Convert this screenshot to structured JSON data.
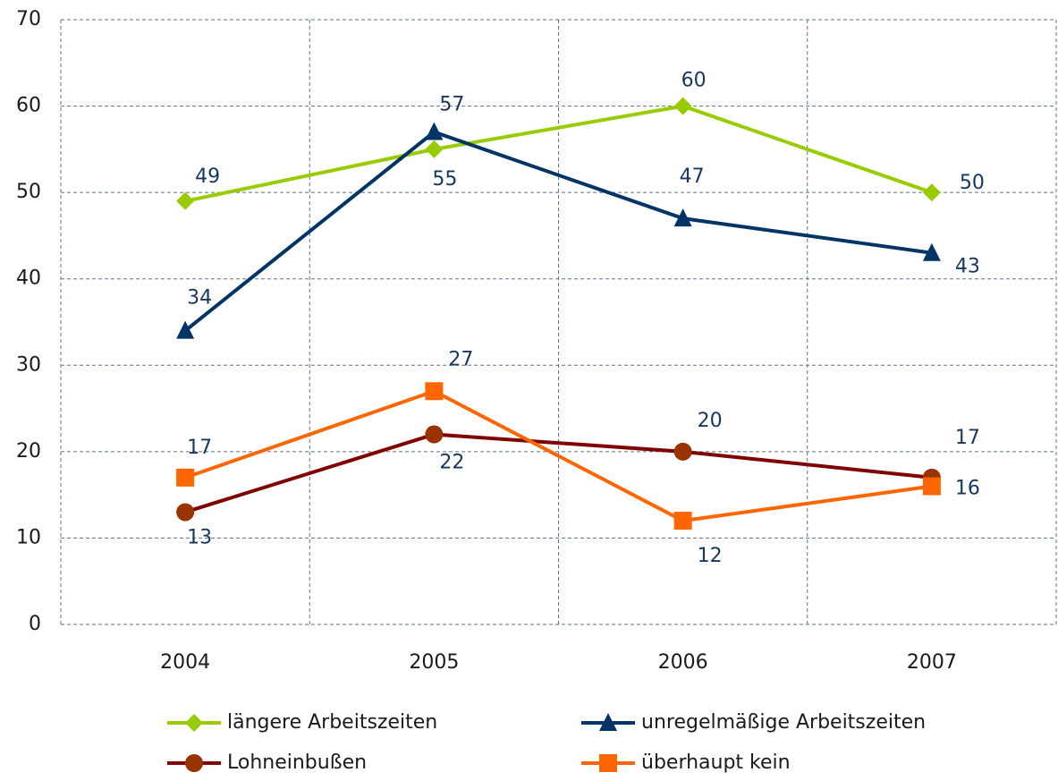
{
  "chart_data": {
    "type": "line",
    "categories": [
      "2004",
      "2005",
      "2006",
      "2007"
    ],
    "series": [
      {
        "name": "längere Arbeitszeiten",
        "color": "#99cc00",
        "marker": "diamond",
        "values": [
          49,
          55,
          60,
          50
        ]
      },
      {
        "name": "unregelmäßige Arbeitszeiten",
        "color": "#003366",
        "marker": "triangle",
        "values": [
          34,
          57,
          47,
          43
        ]
      },
      {
        "name": "Lohneinbußen",
        "color": "#800000",
        "marker_color": "#993300",
        "marker": "circle",
        "values": [
          13,
          22,
          20,
          17
        ]
      },
      {
        "name": "überhaupt kein",
        "color": "#ff6600",
        "marker": "square",
        "values": [
          17,
          27,
          12,
          16
        ]
      }
    ],
    "ylim": [
      0,
      70
    ],
    "yticks": [
      0,
      10,
      20,
      30,
      40,
      50,
      60,
      70
    ],
    "grid": true,
    "legend": "bottom"
  }
}
